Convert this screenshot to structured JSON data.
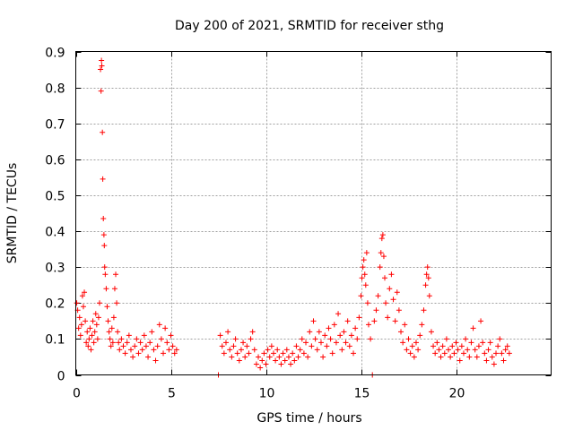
{
  "chart_data": {
    "type": "scatter",
    "title": "Day 200 of 2021, SRMTID for receiver sthg",
    "xlabel": "GPS time / hours",
    "ylabel": "SRMTID / TECUs",
    "xlim": [
      0,
      25
    ],
    "ylim": [
      0,
      0.9
    ],
    "xticks": [
      0,
      5,
      10,
      15,
      20
    ],
    "xtick_labels": [
      "0",
      "5",
      "10",
      "15",
      "20"
    ],
    "yticks": [
      0,
      0.1,
      0.2,
      0.3,
      0.4,
      0.5,
      0.6,
      0.7,
      0.8,
      0.9
    ],
    "ytick_labels": [
      "0",
      "0.1",
      "0.2",
      "0.3",
      "0.4",
      "0.5",
      "0.6",
      "0.7",
      "0.8",
      "0.9"
    ],
    "grid": true,
    "marker": "+",
    "color": "#ff0000",
    "series": [
      {
        "name": "SRMTID",
        "points": [
          [
            0.05,
            0.2
          ],
          [
            0.1,
            0.18
          ],
          [
            0.15,
            0.13
          ],
          [
            0.2,
            0.16
          ],
          [
            0.25,
            0.11
          ],
          [
            0.3,
            0.14
          ],
          [
            0.35,
            0.22
          ],
          [
            0.4,
            0.19
          ],
          [
            0.45,
            0.23
          ],
          [
            0.5,
            0.15
          ],
          [
            0.55,
            0.09
          ],
          [
            0.6,
            0.12
          ],
          [
            0.65,
            0.08
          ],
          [
            0.7,
            0.1
          ],
          [
            0.75,
            0.13
          ],
          [
            0.8,
            0.07
          ],
          [
            0.85,
            0.11
          ],
          [
            0.9,
            0.15
          ],
          [
            0.95,
            0.09
          ],
          [
            1.0,
            0.12
          ],
          [
            1.05,
            0.17
          ],
          [
            1.1,
            0.14
          ],
          [
            1.15,
            0.1
          ],
          [
            1.2,
            0.16
          ],
          [
            1.25,
            0.2
          ],
          [
            1.3,
            0.85
          ],
          [
            1.33,
            0.79
          ],
          [
            1.35,
            0.875
          ],
          [
            1.37,
            0.86
          ],
          [
            1.4,
            0.675
          ],
          [
            1.42,
            0.545
          ],
          [
            1.45,
            0.435
          ],
          [
            1.48,
            0.39
          ],
          [
            1.5,
            0.36
          ],
          [
            1.52,
            0.3
          ],
          [
            1.55,
            0.28
          ],
          [
            1.6,
            0.24
          ],
          [
            1.65,
            0.19
          ],
          [
            1.7,
            0.15
          ],
          [
            1.75,
            0.12
          ],
          [
            1.8,
            0.1
          ],
          [
            1.85,
            0.08
          ],
          [
            1.9,
            0.13
          ],
          [
            1.95,
            0.09
          ],
          [
            2.0,
            0.16
          ],
          [
            2.05,
            0.24
          ],
          [
            2.1,
            0.28
          ],
          [
            2.15,
            0.2
          ],
          [
            2.2,
            0.12
          ],
          [
            2.25,
            0.09
          ],
          [
            2.3,
            0.07
          ],
          [
            2.4,
            0.1
          ],
          [
            2.5,
            0.08
          ],
          [
            2.6,
            0.06
          ],
          [
            2.7,
            0.09
          ],
          [
            2.8,
            0.11
          ],
          [
            2.9,
            0.07
          ],
          [
            3.0,
            0.05
          ],
          [
            3.1,
            0.08
          ],
          [
            3.2,
            0.1
          ],
          [
            3.3,
            0.06
          ],
          [
            3.4,
            0.09
          ],
          [
            3.5,
            0.07
          ],
          [
            3.6,
            0.11
          ],
          [
            3.7,
            0.08
          ],
          [
            3.8,
            0.05
          ],
          [
            3.9,
            0.09
          ],
          [
            4.0,
            0.12
          ],
          [
            4.1,
            0.07
          ],
          [
            4.2,
            0.04
          ],
          [
            4.3,
            0.08
          ],
          [
            4.4,
            0.14
          ],
          [
            4.5,
            0.1
          ],
          [
            4.6,
            0.06
          ],
          [
            4.7,
            0.13
          ],
          [
            4.8,
            0.09
          ],
          [
            4.9,
            0.07
          ],
          [
            5.0,
            0.11
          ],
          [
            5.1,
            0.08
          ],
          [
            5.2,
            0.06
          ],
          [
            5.3,
            0.07
          ],
          [
            7.5,
            0.0
          ],
          [
            7.6,
            0.11
          ],
          [
            7.7,
            0.08
          ],
          [
            7.8,
            0.06
          ],
          [
            7.9,
            0.09
          ],
          [
            8.0,
            0.12
          ],
          [
            8.1,
            0.07
          ],
          [
            8.2,
            0.05
          ],
          [
            8.3,
            0.08
          ],
          [
            8.4,
            0.1
          ],
          [
            8.5,
            0.06
          ],
          [
            8.6,
            0.04
          ],
          [
            8.7,
            0.07
          ],
          [
            8.8,
            0.09
          ],
          [
            8.9,
            0.05
          ],
          [
            9.0,
            0.08
          ],
          [
            9.1,
            0.06
          ],
          [
            9.2,
            0.1
          ],
          [
            9.3,
            0.12
          ],
          [
            9.4,
            0.07
          ],
          [
            9.5,
            0.03
          ],
          [
            9.6,
            0.05
          ],
          [
            9.7,
            0.02
          ],
          [
            9.8,
            0.04
          ],
          [
            9.9,
            0.06
          ],
          [
            10.0,
            0.03
          ],
          [
            10.1,
            0.07
          ],
          [
            10.2,
            0.05
          ],
          [
            10.3,
            0.08
          ],
          [
            10.4,
            0.06
          ],
          [
            10.5,
            0.04
          ],
          [
            10.6,
            0.07
          ],
          [
            10.7,
            0.05
          ],
          [
            10.8,
            0.03
          ],
          [
            10.9,
            0.06
          ],
          [
            11.0,
            0.04
          ],
          [
            11.1,
            0.07
          ],
          [
            11.2,
            0.05
          ],
          [
            11.3,
            0.03
          ],
          [
            11.4,
            0.06
          ],
          [
            11.5,
            0.04
          ],
          [
            11.6,
            0.08
          ],
          [
            11.7,
            0.05
          ],
          [
            11.8,
            0.07
          ],
          [
            11.9,
            0.1
          ],
          [
            12.0,
            0.06
          ],
          [
            12.1,
            0.09
          ],
          [
            12.2,
            0.05
          ],
          [
            12.3,
            0.12
          ],
          [
            12.4,
            0.08
          ],
          [
            12.5,
            0.15
          ],
          [
            12.6,
            0.1
          ],
          [
            12.7,
            0.07
          ],
          [
            12.8,
            0.12
          ],
          [
            12.9,
            0.09
          ],
          [
            13.0,
            0.05
          ],
          [
            13.1,
            0.11
          ],
          [
            13.2,
            0.08
          ],
          [
            13.3,
            0.13
          ],
          [
            13.4,
            0.1
          ],
          [
            13.5,
            0.06
          ],
          [
            13.6,
            0.14
          ],
          [
            13.7,
            0.09
          ],
          [
            13.8,
            0.17
          ],
          [
            13.9,
            0.11
          ],
          [
            14.0,
            0.07
          ],
          [
            14.1,
            0.12
          ],
          [
            14.2,
            0.09
          ],
          [
            14.3,
            0.15
          ],
          [
            14.4,
            0.08
          ],
          [
            14.5,
            0.11
          ],
          [
            14.6,
            0.06
          ],
          [
            14.7,
            0.13
          ],
          [
            14.8,
            0.1
          ],
          [
            14.9,
            0.16
          ],
          [
            15.0,
            0.22
          ],
          [
            15.05,
            0.27
          ],
          [
            15.1,
            0.3
          ],
          [
            15.15,
            0.32
          ],
          [
            15.2,
            0.28
          ],
          [
            15.25,
            0.25
          ],
          [
            15.3,
            0.34
          ],
          [
            15.35,
            0.2
          ],
          [
            15.4,
            0.14
          ],
          [
            15.5,
            0.1
          ],
          [
            15.6,
            0.0
          ],
          [
            15.7,
            0.15
          ],
          [
            15.8,
            0.18
          ],
          [
            15.9,
            0.22
          ],
          [
            16.0,
            0.3
          ],
          [
            16.05,
            0.34
          ],
          [
            16.1,
            0.38
          ],
          [
            16.15,
            0.39
          ],
          [
            16.2,
            0.33
          ],
          [
            16.25,
            0.27
          ],
          [
            16.3,
            0.2
          ],
          [
            16.4,
            0.16
          ],
          [
            16.5,
            0.24
          ],
          [
            16.6,
            0.28
          ],
          [
            16.7,
            0.21
          ],
          [
            16.8,
            0.15
          ],
          [
            16.9,
            0.23
          ],
          [
            17.0,
            0.18
          ],
          [
            17.1,
            0.12
          ],
          [
            17.2,
            0.09
          ],
          [
            17.3,
            0.14
          ],
          [
            17.4,
            0.07
          ],
          [
            17.5,
            0.1
          ],
          [
            17.6,
            0.06
          ],
          [
            17.7,
            0.08
          ],
          [
            17.8,
            0.05
          ],
          [
            17.9,
            0.09
          ],
          [
            18.0,
            0.07
          ],
          [
            18.1,
            0.11
          ],
          [
            18.2,
            0.14
          ],
          [
            18.3,
            0.18
          ],
          [
            18.4,
            0.25
          ],
          [
            18.45,
            0.28
          ],
          [
            18.5,
            0.3
          ],
          [
            18.55,
            0.27
          ],
          [
            18.6,
            0.22
          ],
          [
            18.7,
            0.12
          ],
          [
            18.8,
            0.08
          ],
          [
            18.9,
            0.06
          ],
          [
            19.0,
            0.09
          ],
          [
            19.1,
            0.07
          ],
          [
            19.2,
            0.05
          ],
          [
            19.3,
            0.08
          ],
          [
            19.4,
            0.06
          ],
          [
            19.5,
            0.1
          ],
          [
            19.6,
            0.07
          ],
          [
            19.7,
            0.05
          ],
          [
            19.8,
            0.08
          ],
          [
            19.9,
            0.06
          ],
          [
            20.0,
            0.09
          ],
          [
            20.1,
            0.07
          ],
          [
            20.2,
            0.04
          ],
          [
            20.3,
            0.08
          ],
          [
            20.4,
            0.06
          ],
          [
            20.5,
            0.1
          ],
          [
            20.6,
            0.07
          ],
          [
            20.7,
            0.05
          ],
          [
            20.8,
            0.09
          ],
          [
            20.9,
            0.13
          ],
          [
            21.0,
            0.07
          ],
          [
            21.1,
            0.05
          ],
          [
            21.2,
            0.08
          ],
          [
            21.3,
            0.15
          ],
          [
            21.4,
            0.09
          ],
          [
            21.5,
            0.06
          ],
          [
            21.6,
            0.04
          ],
          [
            21.7,
            0.07
          ],
          [
            21.8,
            0.09
          ],
          [
            21.9,
            0.05
          ],
          [
            22.0,
            0.03
          ],
          [
            22.1,
            0.06
          ],
          [
            22.2,
            0.08
          ],
          [
            22.3,
            0.1
          ],
          [
            22.4,
            0.06
          ],
          [
            22.5,
            0.04
          ],
          [
            22.6,
            0.07
          ],
          [
            22.7,
            0.08
          ],
          [
            22.8,
            0.06
          ]
        ]
      }
    ]
  }
}
